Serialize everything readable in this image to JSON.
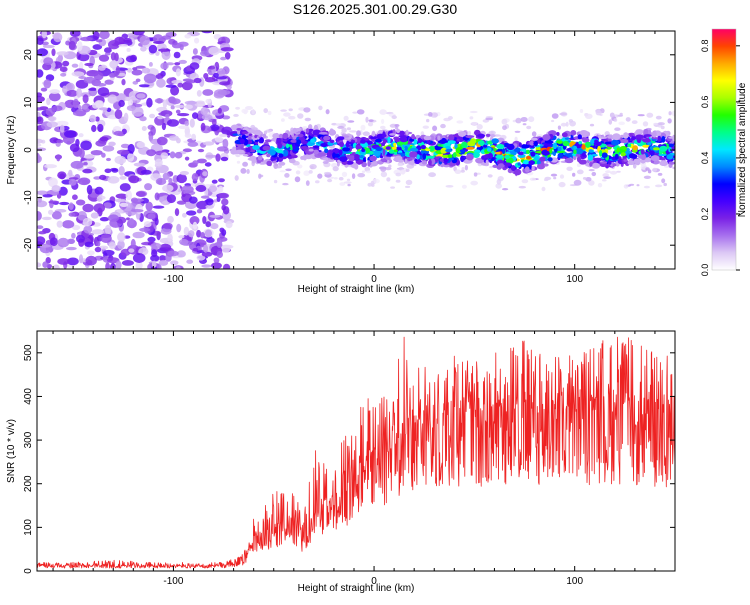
{
  "title": "S126.2025.301.00.29.G30",
  "chart_data": [
    {
      "type": "heatmap",
      "title": "",
      "xlabel": "Height of straight line (km)",
      "ylabel": "Frequency (Hz)",
      "xlim": [
        -168,
        150
      ],
      "ylim": [
        -25,
        25
      ],
      "xticks": [
        -100,
        0,
        100
      ],
      "yticks": [
        -20,
        -10,
        0,
        10,
        20
      ],
      "grid": false,
      "description_series": [
        {
          "name": "noise region",
          "x_range": [
            -168,
            -72
          ],
          "frequency_range": [
            -25,
            25
          ],
          "typical_amplitude": 0.15
        },
        {
          "name": "signal band centre",
          "x": [
            -70,
            -50,
            -30,
            -10,
            10,
            30,
            50,
            70,
            90,
            110,
            130,
            150
          ],
          "frequency_center": [
            2,
            0.5,
            1,
            0.5,
            0,
            0.5,
            0,
            -1,
            0,
            0.5,
            0,
            0
          ],
          "peak_amplitude": [
            0.4,
            0.5,
            0.45,
            0.6,
            0.7,
            0.75,
            0.8,
            0.8,
            0.75,
            0.75,
            0.7,
            0.6
          ]
        }
      ],
      "colorbar": {
        "label": "Normalized spectral amplitude",
        "range": [
          0.0,
          0.86
        ],
        "ticks": [
          "0.0",
          "0.2",
          "0.4",
          "0.6",
          "0.8"
        ],
        "tick_values": [
          0.0,
          0.2,
          0.4,
          0.6,
          0.8
        ],
        "colors": [
          "#ffffff",
          "#dcc8f5",
          "#a770ee",
          "#7a22e6",
          "#4400ff",
          "#0000ff",
          "#0088ff",
          "#00e8ff",
          "#00ff88",
          "#22ff00",
          "#aaff00",
          "#ffff00",
          "#ffaa00",
          "#ff4400",
          "#ff0066"
        ]
      }
    },
    {
      "type": "line",
      "title": "",
      "xlabel": "Height of straight line (km)",
      "ylabel": "SNR (10 * v/v)",
      "xlim": [
        -168,
        150
      ],
      "ylim": [
        0,
        550
      ],
      "xticks": [
        -100,
        0,
        100
      ],
      "yticks": [
        0,
        100,
        200,
        300,
        400,
        500
      ],
      "grid": false,
      "series": [
        {
          "name": "SNR",
          "color": "#ee2222",
          "x": [
            -168,
            -150,
            -130,
            -110,
            -90,
            -75,
            -65,
            -60,
            -55,
            -50,
            -45,
            -40,
            -35,
            -30,
            -25,
            -20,
            -15,
            -10,
            -5,
            0,
            5,
            10,
            15,
            20,
            25,
            30,
            40,
            50,
            60,
            70,
            80,
            90,
            100,
            110,
            120,
            130,
            140,
            150
          ],
          "values": [
            12,
            12,
            12,
            12,
            12,
            12,
            22,
            75,
            80,
            95,
            110,
            115,
            70,
            130,
            155,
            150,
            170,
            195,
            235,
            250,
            270,
            300,
            310,
            320,
            330,
            340,
            345,
            350,
            355,
            360,
            350,
            365,
            360,
            355,
            360,
            350,
            345,
            350
          ],
          "max_values": [
            20,
            20,
            25,
            20,
            20,
            20,
            40,
            125,
            145,
            180,
            190,
            205,
            130,
            280,
            335,
            270,
            310,
            355,
            390,
            420,
            435,
            450,
            540,
            470,
            490,
            500,
            520,
            480,
            510,
            540,
            525,
            500,
            500,
            520,
            550,
            530,
            500,
            500
          ]
        }
      ]
    }
  ]
}
